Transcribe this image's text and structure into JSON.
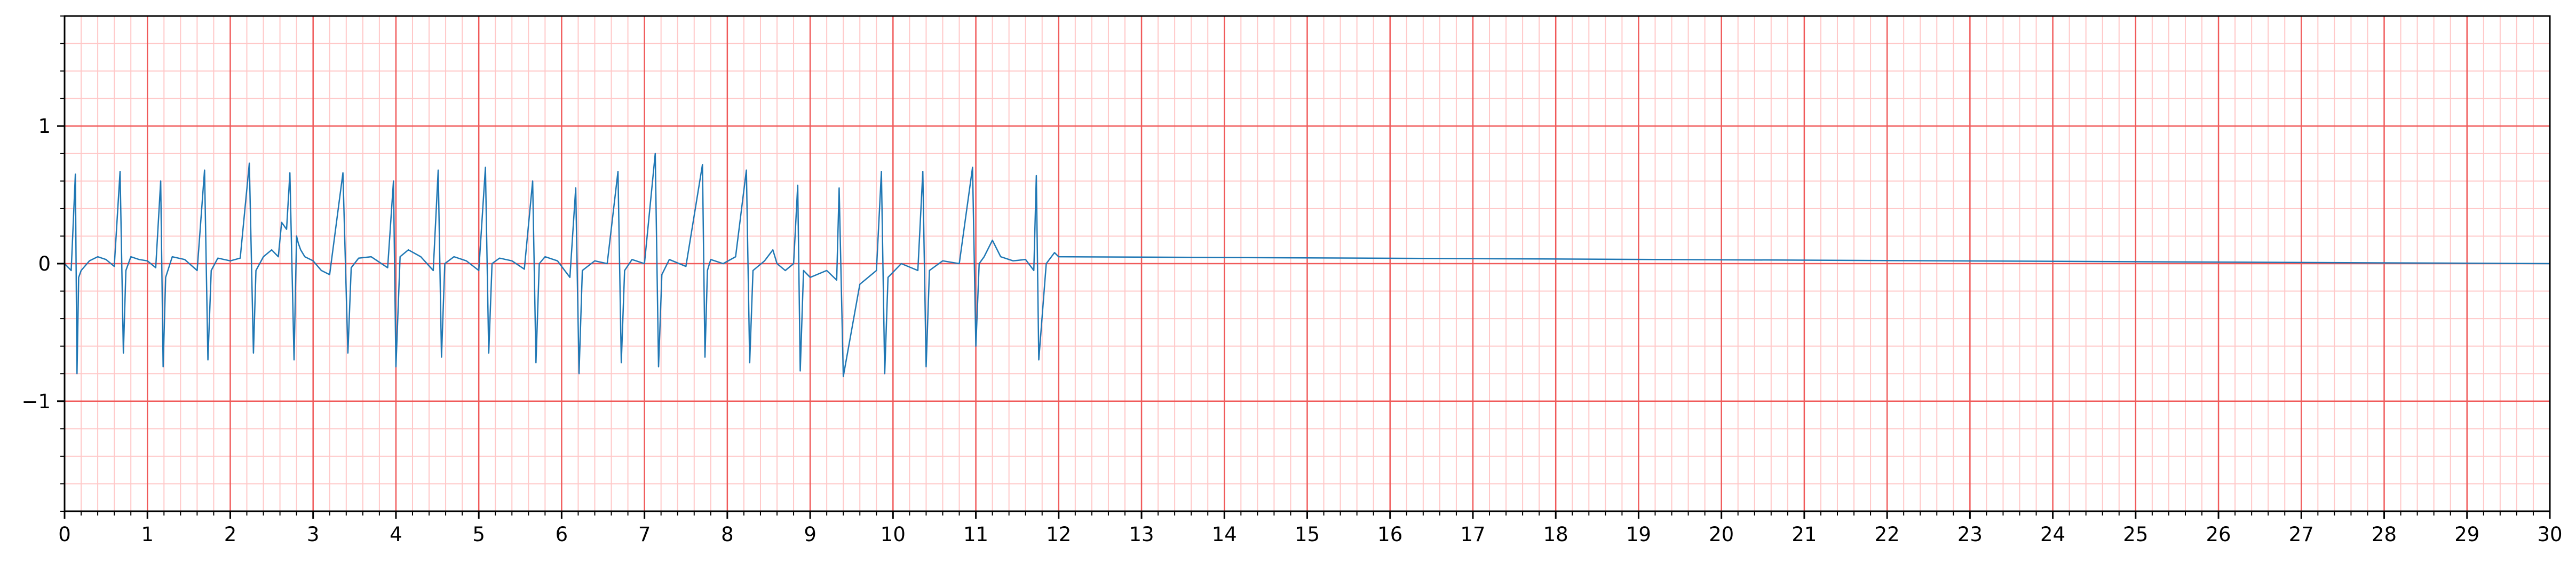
{
  "chart_data": {
    "type": "line",
    "title": "",
    "xlabel": "",
    "ylabel": "",
    "xlim": [
      0,
      30
    ],
    "ylim": [
      -1.8,
      1.8
    ],
    "grid": "ecg paper: major lines every 1 s / 1 unit, minor lines every 0.2",
    "x_ticks": [
      "0",
      "1",
      "2",
      "3",
      "4",
      "5",
      "6",
      "7",
      "8",
      "9",
      "10",
      "11",
      "12",
      "13",
      "14",
      "15",
      "16",
      "17",
      "18",
      "19",
      "20",
      "21",
      "22",
      "23",
      "24",
      "25",
      "26",
      "27",
      "28",
      "29",
      "30"
    ],
    "y_ticks": [
      {
        "value": 1,
        "label": "1"
      },
      {
        "value": 0,
        "label": "0"
      },
      {
        "value": -1,
        "label": "−1"
      }
    ],
    "colors": {
      "trace": "#1f77b4",
      "major_grid": "#f05a5a",
      "minor_grid": "#ffc8c8",
      "axes": "#000000"
    },
    "series": [
      {
        "x": [
          0.0,
          0.08,
          0.13,
          0.15,
          0.17,
          0.2,
          0.3,
          0.4,
          0.5,
          0.6,
          0.67,
          0.71,
          0.74,
          0.8,
          0.9,
          1.0,
          1.1,
          1.16,
          1.19,
          1.22,
          1.3,
          1.45,
          1.6,
          1.69,
          1.73,
          1.77,
          1.85,
          2.0,
          2.12,
          2.23,
          2.28,
          2.31,
          2.4,
          2.5,
          2.58,
          2.62,
          2.68,
          2.72,
          2.77,
          2.8,
          2.82,
          2.85,
          2.9,
          3.0,
          3.1,
          3.2,
          3.36,
          3.42,
          3.46,
          3.55,
          3.7,
          3.9,
          3.97,
          4.0,
          4.05,
          4.15,
          4.3,
          4.45,
          4.51,
          4.55,
          4.59,
          4.7,
          4.85,
          5.0,
          5.08,
          5.12,
          5.16,
          5.25,
          5.4,
          5.55,
          5.65,
          5.69,
          5.73,
          5.8,
          5.95,
          6.1,
          6.17,
          6.21,
          6.25,
          6.4,
          6.55,
          6.68,
          6.72,
          6.76,
          6.85,
          7.0,
          7.13,
          7.17,
          7.21,
          7.3,
          7.5,
          7.7,
          7.73,
          7.76,
          7.8,
          7.95,
          8.1,
          8.23,
          8.27,
          8.31,
          8.45,
          8.55,
          8.6,
          8.7,
          8.8,
          8.85,
          8.88,
          8.92,
          9.0,
          9.2,
          9.32,
          9.35,
          9.4,
          9.6,
          9.8,
          9.86,
          9.9,
          9.94,
          10.1,
          10.3,
          10.36,
          10.4,
          10.44,
          10.6,
          10.8,
          10.96,
          11.0,
          11.04,
          11.1,
          11.2,
          11.3,
          11.45,
          11.6,
          11.7,
          11.73,
          11.76,
          11.85,
          11.95,
          12.0,
          30.0
        ],
        "y": [
          0.0,
          -0.05,
          0.65,
          -0.8,
          -0.1,
          -0.05,
          0.02,
          0.05,
          0.03,
          -0.02,
          0.67,
          -0.65,
          -0.05,
          0.05,
          0.03,
          0.02,
          -0.03,
          0.6,
          -0.75,
          -0.1,
          0.05,
          0.03,
          -0.05,
          0.68,
          -0.7,
          -0.05,
          0.04,
          0.02,
          0.04,
          0.73,
          -0.65,
          -0.05,
          0.05,
          0.1,
          0.05,
          0.3,
          0.25,
          0.66,
          -0.7,
          0.2,
          0.15,
          0.1,
          0.05,
          0.02,
          -0.05,
          -0.08,
          0.66,
          -0.65,
          -0.03,
          0.04,
          0.05,
          -0.03,
          0.6,
          -0.75,
          0.05,
          0.1,
          0.05,
          -0.05,
          0.68,
          -0.68,
          0.0,
          0.05,
          0.02,
          -0.05,
          0.7,
          -0.65,
          0.0,
          0.04,
          0.02,
          -0.04,
          0.6,
          -0.72,
          0.0,
          0.05,
          0.02,
          -0.1,
          0.55,
          -0.8,
          -0.05,
          0.02,
          0.0,
          0.67,
          -0.72,
          -0.05,
          0.03,
          0.0,
          0.8,
          -0.75,
          -0.08,
          0.03,
          -0.02,
          0.72,
          -0.68,
          -0.05,
          0.03,
          0.0,
          0.05,
          0.68,
          -0.72,
          -0.05,
          0.02,
          0.1,
          0.0,
          -0.05,
          0.0,
          0.57,
          -0.78,
          -0.05,
          -0.1,
          -0.05,
          -0.12,
          0.55,
          -0.82,
          -0.15,
          -0.05,
          0.67,
          -0.8,
          -0.1,
          0.0,
          -0.05,
          0.67,
          -0.75,
          -0.05,
          0.02,
          0.0,
          0.7,
          -0.6,
          0.0,
          0.05,
          0.17,
          0.05,
          0.02,
          0.03,
          -0.05,
          0.64,
          -0.7,
          0.0,
          0.08,
          0.05,
          0.0
        ]
      }
    ]
  }
}
